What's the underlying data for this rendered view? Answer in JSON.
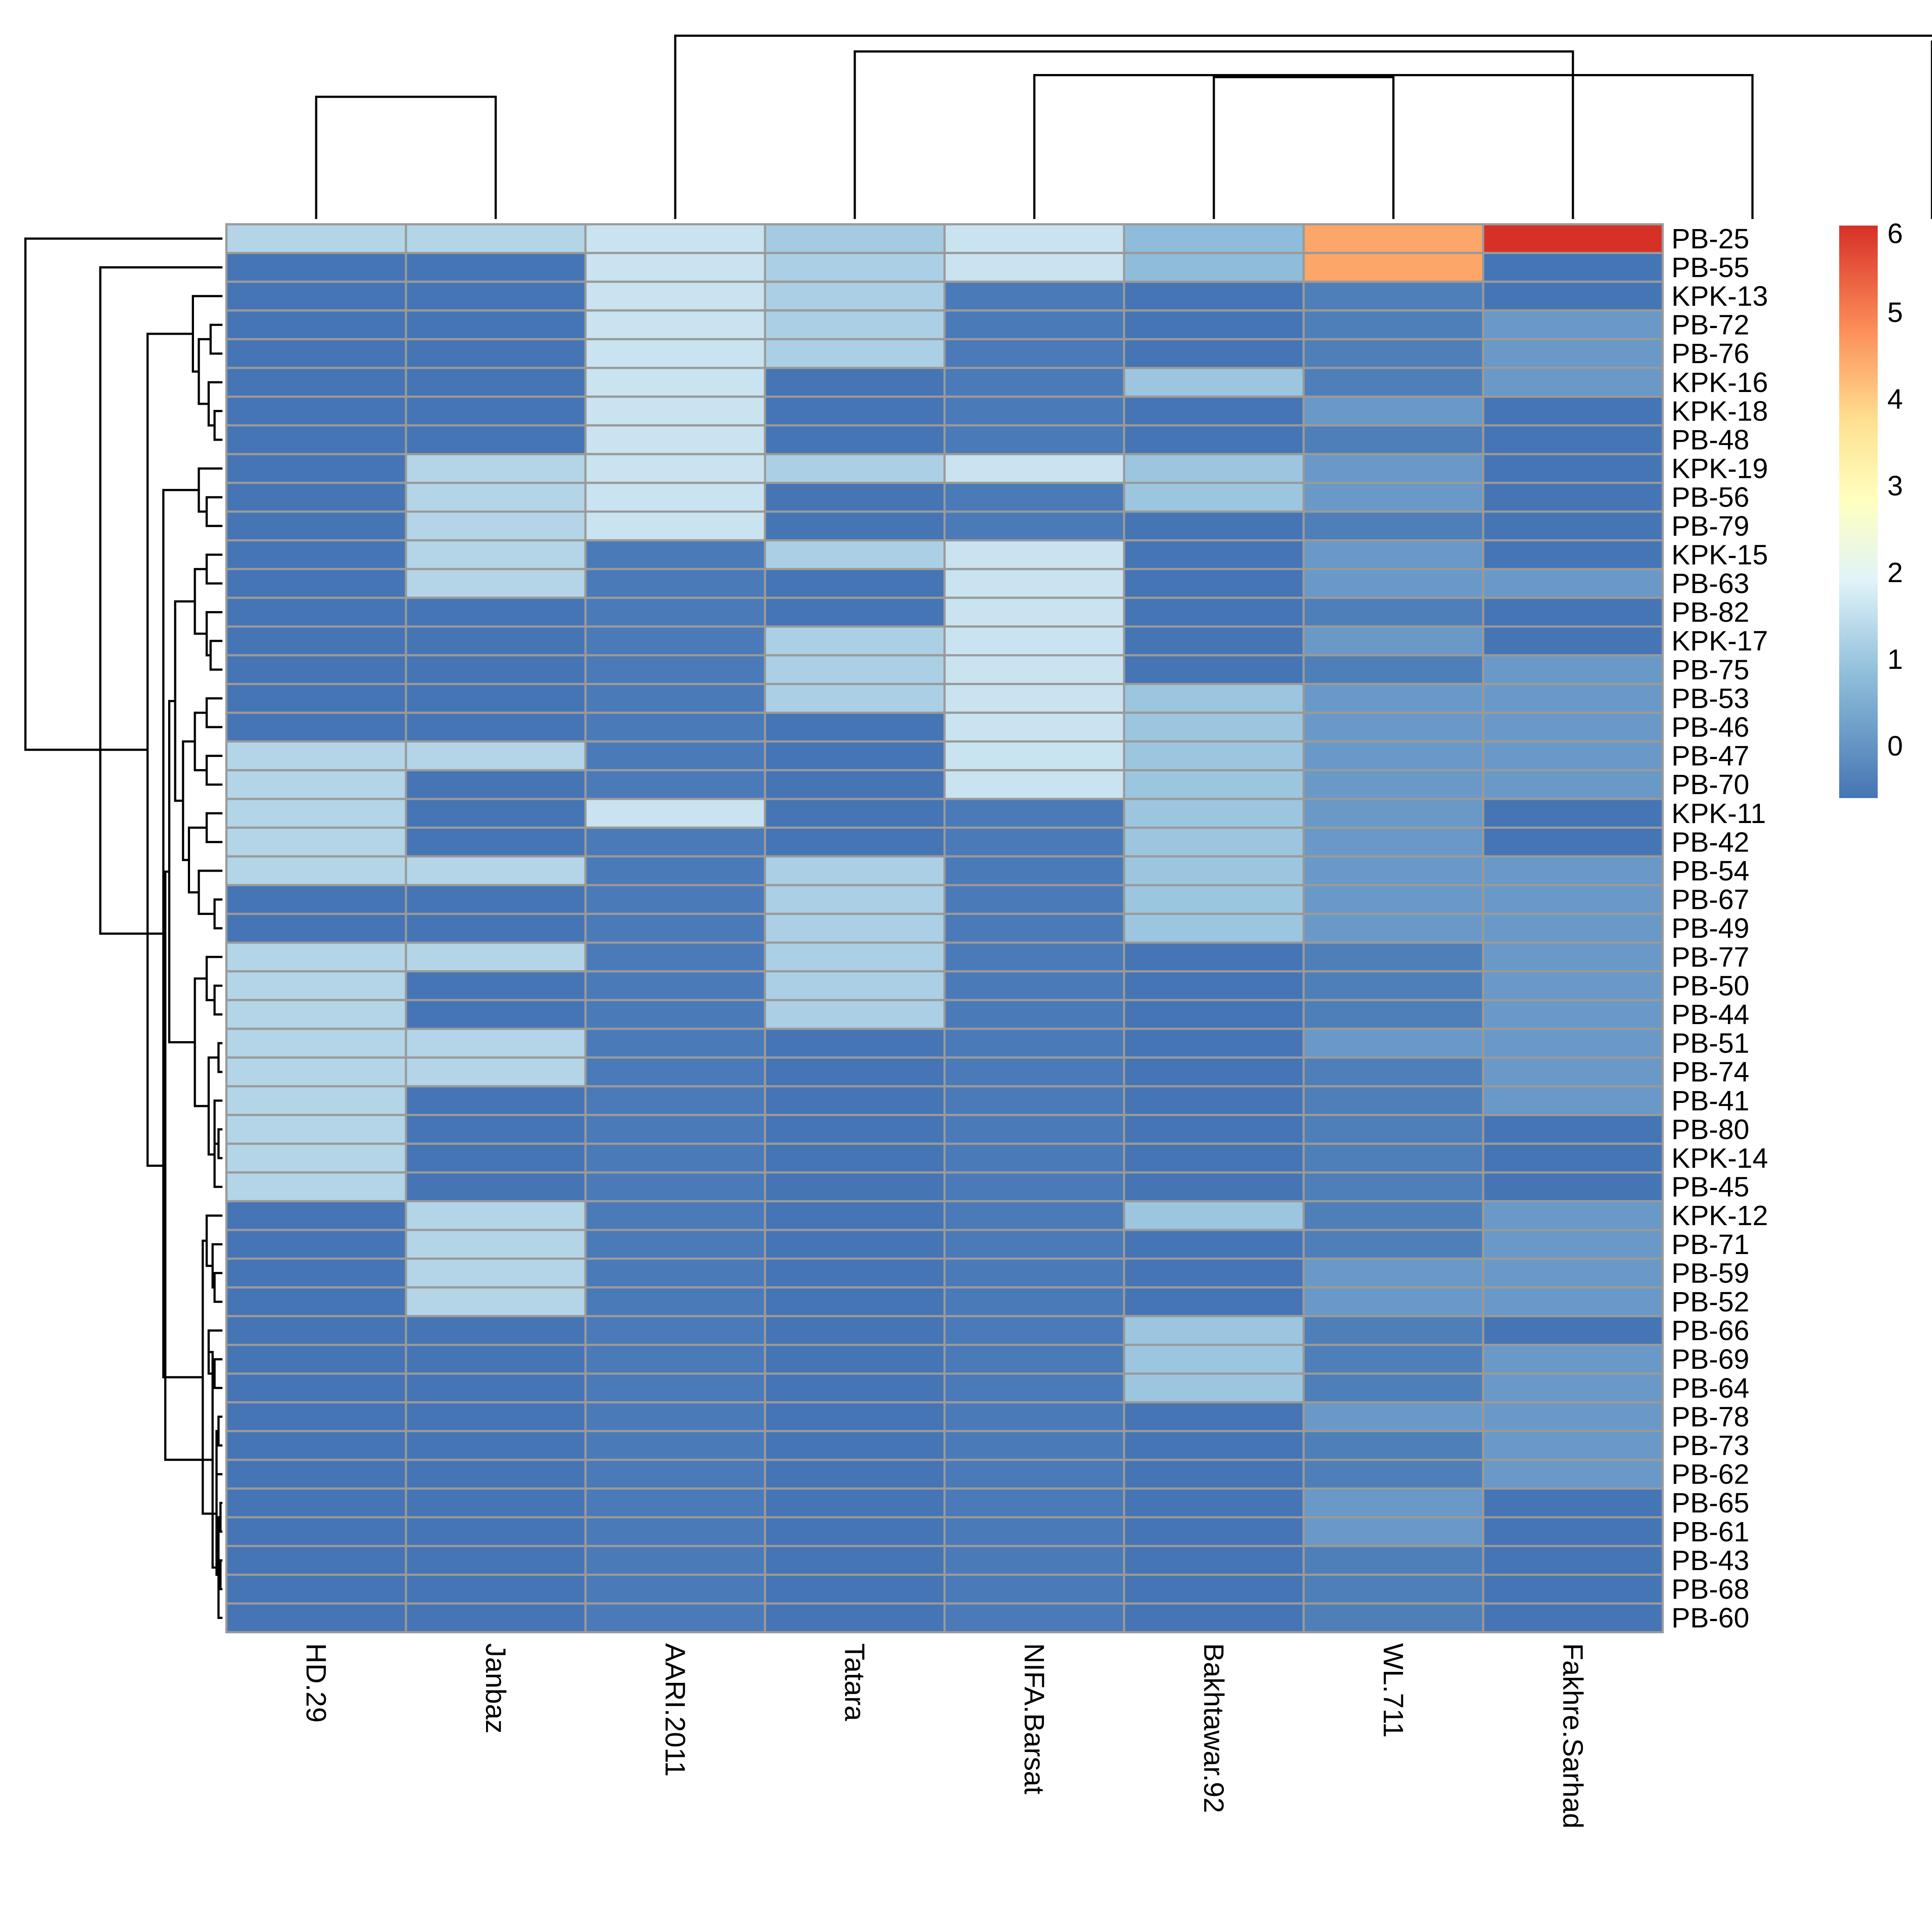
{
  "chart_data": {
    "type": "heatmap",
    "title": "",
    "columns": [
      "HD.29",
      "Janbaz",
      "AARI.2011",
      "Tatara",
      "NIFA.Barsat",
      "Bakhtawar.92",
      "WL.711",
      "Fakhre.Sarhad"
    ],
    "rows": [
      "PB-25",
      "PB-55",
      "KPK-13",
      "PB-72",
      "PB-76",
      "KPK-16",
      "KPK-18",
      "PB-48",
      "KPK-19",
      "PB-56",
      "PB-79",
      "KPK-15",
      "PB-63",
      "PB-82",
      "KPK-17",
      "PB-75",
      "PB-53",
      "PB-46",
      "PB-47",
      "PB-70",
      "KPK-11",
      "PB-42",
      "PB-54",
      "PB-67",
      "PB-49",
      "PB-77",
      "PB-50",
      "PB-44",
      "PB-51",
      "PB-74",
      "PB-41",
      "PB-80",
      "KPK-14",
      "PB-45",
      "KPK-12",
      "PB-71",
      "PB-59",
      "PB-52",
      "PB-66",
      "PB-69",
      "PB-64",
      "PB-78",
      "PB-73",
      "PB-62",
      "PB-65",
      "PB-61",
      "PB-43",
      "PB-68",
      "PB-60"
    ],
    "values": [
      [
        1.3,
        1.3,
        1.6,
        1.1,
        1.6,
        0.8,
        4.5,
        6.0
      ],
      [
        -0.6,
        -0.6,
        1.6,
        1.2,
        1.6,
        0.8,
        4.5,
        -0.6
      ],
      [
        -0.6,
        -0.6,
        1.6,
        1.2,
        -0.5,
        -0.6,
        -0.4,
        -0.6
      ],
      [
        -0.6,
        -0.6,
        1.6,
        1.2,
        -0.5,
        -0.6,
        -0.4,
        0.1
      ],
      [
        -0.6,
        -0.6,
        1.6,
        1.2,
        -0.5,
        -0.6,
        -0.4,
        0.1
      ],
      [
        -0.6,
        -0.6,
        1.6,
        -0.6,
        -0.5,
        1.0,
        -0.4,
        0.1
      ],
      [
        -0.6,
        -0.6,
        1.6,
        -0.6,
        -0.5,
        -0.6,
        0.1,
        -0.6
      ],
      [
        -0.6,
        -0.6,
        1.6,
        -0.6,
        -0.5,
        -0.6,
        -0.4,
        -0.6
      ],
      [
        -0.6,
        1.3,
        1.6,
        1.2,
        1.6,
        1.0,
        0.1,
        -0.6
      ],
      [
        -0.6,
        1.3,
        1.6,
        -0.6,
        -0.5,
        1.0,
        0.1,
        -0.6
      ],
      [
        -0.6,
        1.3,
        1.6,
        -0.6,
        -0.5,
        -0.6,
        -0.4,
        -0.6
      ],
      [
        -0.6,
        1.3,
        -0.5,
        1.2,
        1.6,
        -0.6,
        0.1,
        -0.6
      ],
      [
        -0.6,
        1.3,
        -0.5,
        -0.6,
        1.6,
        -0.6,
        0.1,
        0.1
      ],
      [
        -0.6,
        -0.6,
        -0.5,
        -0.6,
        1.6,
        -0.6,
        -0.4,
        -0.6
      ],
      [
        -0.6,
        -0.6,
        -0.5,
        1.2,
        1.6,
        -0.6,
        0.1,
        -0.6
      ],
      [
        -0.6,
        -0.6,
        -0.5,
        1.2,
        1.6,
        -0.6,
        -0.4,
        0.1
      ],
      [
        -0.6,
        -0.6,
        -0.5,
        1.2,
        1.6,
        1.0,
        0.1,
        0.1
      ],
      [
        -0.6,
        -0.6,
        -0.5,
        -0.6,
        1.6,
        1.0,
        0.1,
        0.1
      ],
      [
        1.3,
        1.3,
        -0.5,
        -0.6,
        1.6,
        1.0,
        0.1,
        0.1
      ],
      [
        1.3,
        -0.6,
        -0.5,
        -0.6,
        1.6,
        1.0,
        0.1,
        0.1
      ],
      [
        1.3,
        -0.6,
        1.6,
        -0.6,
        -0.5,
        1.0,
        0.1,
        -0.6
      ],
      [
        1.3,
        -0.6,
        -0.5,
        -0.6,
        -0.5,
        1.0,
        0.1,
        -0.6
      ],
      [
        1.3,
        1.3,
        -0.5,
        1.2,
        -0.5,
        1.0,
        0.1,
        0.1
      ],
      [
        -0.6,
        -0.6,
        -0.5,
        1.2,
        -0.5,
        1.0,
        0.1,
        0.1
      ],
      [
        -0.6,
        -0.6,
        -0.5,
        1.2,
        -0.5,
        1.0,
        0.1,
        0.1
      ],
      [
        1.3,
        1.3,
        -0.5,
        1.2,
        -0.5,
        -0.6,
        -0.4,
        0.1
      ],
      [
        1.3,
        -0.6,
        -0.5,
        1.2,
        -0.5,
        -0.6,
        -0.4,
        0.1
      ],
      [
        1.3,
        -0.6,
        -0.5,
        1.2,
        -0.5,
        -0.6,
        -0.4,
        0.1
      ],
      [
        1.3,
        1.3,
        -0.5,
        -0.6,
        -0.5,
        -0.6,
        0.1,
        0.1
      ],
      [
        1.3,
        1.3,
        -0.5,
        -0.6,
        -0.5,
        -0.6,
        -0.4,
        0.1
      ],
      [
        1.3,
        -0.6,
        -0.5,
        -0.6,
        -0.5,
        -0.6,
        -0.4,
        0.1
      ],
      [
        1.3,
        -0.6,
        -0.5,
        -0.6,
        -0.5,
        -0.6,
        -0.4,
        -0.6
      ],
      [
        1.3,
        -0.6,
        -0.5,
        -0.6,
        -0.5,
        -0.6,
        -0.4,
        -0.6
      ],
      [
        1.3,
        -0.6,
        -0.5,
        -0.6,
        -0.5,
        -0.6,
        -0.4,
        -0.6
      ],
      [
        -0.6,
        1.3,
        -0.5,
        -0.6,
        -0.5,
        1.0,
        -0.4,
        0.1
      ],
      [
        -0.6,
        1.3,
        -0.5,
        -0.6,
        -0.5,
        -0.6,
        -0.4,
        0.1
      ],
      [
        -0.6,
        1.3,
        -0.5,
        -0.6,
        -0.5,
        -0.6,
        0.1,
        0.1
      ],
      [
        -0.6,
        1.3,
        -0.5,
        -0.6,
        -0.5,
        -0.6,
        0.1,
        0.1
      ],
      [
        -0.6,
        -0.6,
        -0.5,
        -0.6,
        -0.5,
        1.0,
        -0.4,
        -0.6
      ],
      [
        -0.6,
        -0.6,
        -0.5,
        -0.6,
        -0.5,
        1.0,
        -0.4,
        0.1
      ],
      [
        -0.6,
        -0.6,
        -0.5,
        -0.6,
        -0.5,
        1.0,
        -0.4,
        0.1
      ],
      [
        -0.6,
        -0.6,
        -0.5,
        -0.6,
        -0.5,
        -0.6,
        0.1,
        0.1
      ],
      [
        -0.6,
        -0.6,
        -0.5,
        -0.6,
        -0.5,
        -0.6,
        -0.4,
        0.1
      ],
      [
        -0.6,
        -0.6,
        -0.5,
        -0.6,
        -0.5,
        -0.6,
        -0.4,
        0.1
      ],
      [
        -0.6,
        -0.6,
        -0.5,
        -0.6,
        -0.5,
        -0.6,
        0.1,
        -0.6
      ],
      [
        -0.6,
        -0.6,
        -0.5,
        -0.6,
        -0.5,
        -0.6,
        0.1,
        -0.6
      ],
      [
        -0.6,
        -0.6,
        -0.5,
        -0.6,
        -0.5,
        -0.6,
        -0.4,
        -0.6
      ],
      [
        -0.6,
        -0.6,
        -0.5,
        -0.6,
        -0.5,
        -0.6,
        -0.4,
        -0.6
      ],
      [
        -0.6,
        -0.6,
        -0.5,
        -0.6,
        -0.5,
        -0.6,
        -0.4,
        -0.6
      ]
    ],
    "color_scale": {
      "range": [
        -0.6,
        6
      ],
      "ticks": [
        0,
        1,
        2,
        3,
        4,
        5,
        6
      ],
      "palette": [
        "#4575b4",
        "#91bfdb",
        "#e0f3f8",
        "#ffffbf",
        "#fee090",
        "#fc8d59",
        "#d73027"
      ]
    },
    "col_dendrogram": [
      [
        0,
        1,
        0.62
      ],
      [
        5,
        6,
        0.72
      ],
      [
        4,
        8,
        0.73
      ],
      [
        3,
        7,
        0.85
      ],
      [
        9,
        10,
        0.9
      ],
      [
        2,
        11,
        0.93
      ],
      [
        12,
        13,
        1.0
      ]
    ],
    "row_dendrogram": [
      [
        3,
        4,
        0.06
      ],
      [
        6,
        7,
        0.04
      ],
      [
        5,
        -2,
        0.07
      ],
      [
        -1,
        -3,
        0.12
      ],
      [
        2,
        -4,
        0.15
      ],
      [
        9,
        10,
        0.08
      ],
      [
        8,
        -6,
        0.12
      ],
      [
        14,
        15,
        0.06
      ],
      [
        13,
        -8,
        0.08
      ],
      [
        11,
        12,
        0.08
      ],
      [
        -10,
        -9,
        0.14
      ],
      [
        16,
        17,
        0.08
      ],
      [
        18,
        19,
        0.08
      ],
      [
        -12,
        -13,
        0.14
      ],
      [
        20,
        21,
        0.08
      ],
      [
        23,
        24,
        0.04
      ],
      [
        22,
        -16,
        0.12
      ],
      [
        -15,
        -17,
        0.17
      ],
      [
        -14,
        -18,
        0.2
      ],
      [
        -11,
        -19,
        0.24
      ],
      [
        26,
        27,
        0.04
      ],
      [
        25,
        -21,
        0.08
      ],
      [
        28,
        29,
        0.02
      ],
      [
        31,
        32,
        0.02
      ],
      [
        30,
        -24,
        0.04
      ],
      [
        33,
        -25,
        0.04
      ],
      [
        -23,
        -26,
        0.07
      ],
      [
        -22,
        -27,
        0.14
      ],
      [
        -20,
        -28,
        0.27
      ],
      [
        36,
        37,
        0.04
      ],
      [
        35,
        -30,
        0.05
      ],
      [
        34,
        -31,
        0.08
      ],
      [
        39,
        40,
        0.04
      ],
      [
        38,
        -33,
        0.07
      ],
      [
        41,
        42,
        0.02
      ],
      [
        43,
        -35,
        0.03
      ],
      [
        44,
        45,
        0.01
      ],
      [
        46,
        47,
        0.01
      ],
      [
        -37,
        48,
        0.02
      ],
      [
        -38,
        -36,
        0.03
      ],
      [
        -39,
        -34,
        0.05
      ],
      [
        -32,
        -40,
        0.1
      ],
      [
        -29,
        -41,
        0.29
      ],
      [
        -7,
        -42,
        0.3
      ],
      [
        -5,
        -43,
        0.38
      ],
      [
        1,
        -44,
        0.62
      ],
      [
        0,
        -45,
        1.0
      ]
    ]
  }
}
